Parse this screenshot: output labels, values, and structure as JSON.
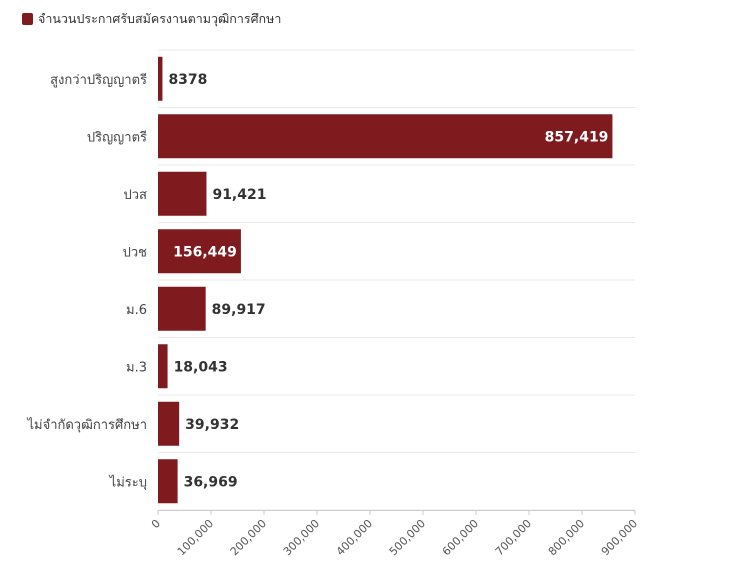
{
  "legend": {
    "label": "จำนวนประกาศรับสมัครงานตามวุฒิการศึกษา",
    "color": "#7f1a1e"
  },
  "chart_data": {
    "type": "bar",
    "orientation": "horizontal",
    "title": "",
    "xlabel": "",
    "ylabel": "",
    "categories": [
      "สูงกว่าปริญญาตรี",
      "ปริญญาตรี",
      "ปวส",
      "ปวช",
      "ม.6",
      "ม.3",
      "ไม่จำกัดวุฒิการศึกษา",
      "ไม่ระบุ"
    ],
    "series": [
      {
        "name": "จำนวนประกาศรับสมัครงานตามวุฒิการศึกษา",
        "values": [
          8378,
          857419,
          91421,
          156449,
          89917,
          18043,
          39932,
          36969
        ],
        "data_labels": [
          "8378",
          "857,419",
          "91,421",
          "156,449",
          "89,917",
          "18,043",
          "39,932",
          "36,969"
        ]
      }
    ],
    "xlim": [
      0,
      900000
    ],
    "xticks": [
      0,
      100000,
      200000,
      300000,
      400000,
      500000,
      600000,
      700000,
      800000,
      900000
    ],
    "xtick_labels": [
      "0",
      "100,000",
      "200,000",
      "300,000",
      "400,000",
      "500,000",
      "600,000",
      "700,000",
      "800,000",
      "900,000"
    ],
    "grid": true,
    "legend_position": "top-left",
    "bar_color": "#7f1a1e",
    "label_color_outside": "#333333",
    "label_color_inside": "#ffffff"
  }
}
